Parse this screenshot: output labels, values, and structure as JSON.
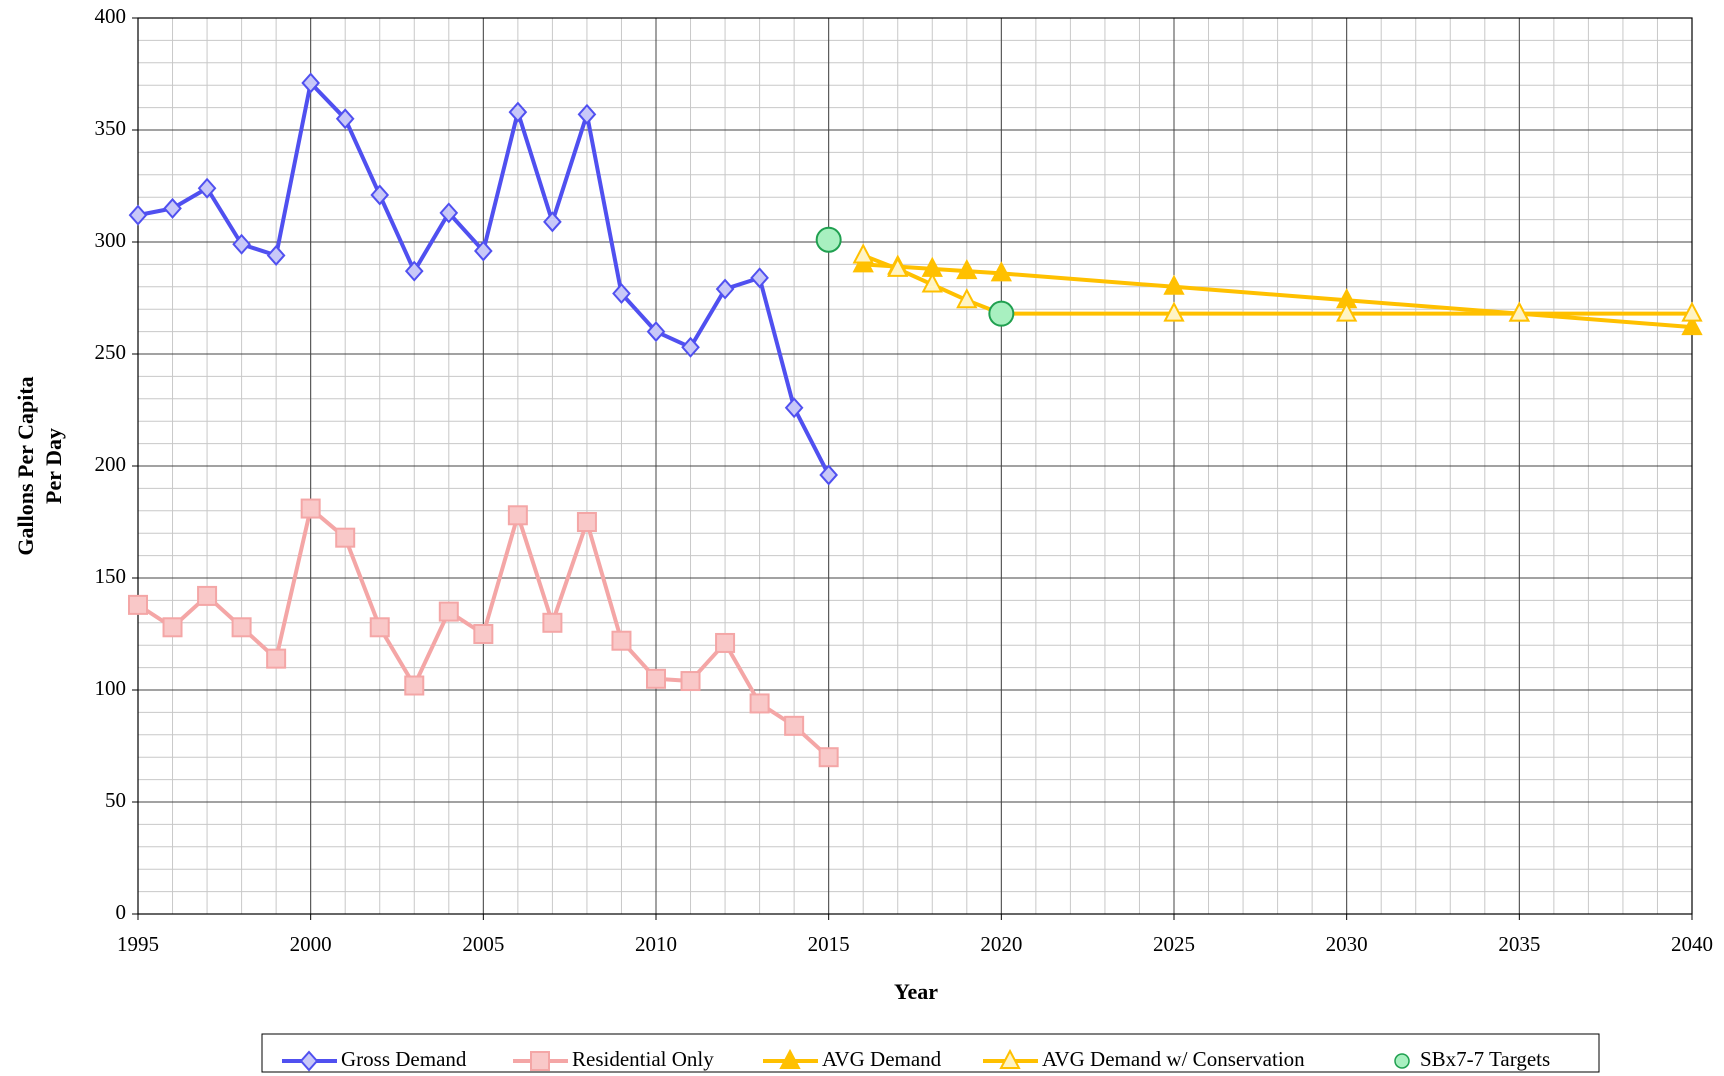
{
  "chart_data": {
    "type": "line",
    "xlabel": "Year",
    "ylabel": [
      "Gallons Per Capita",
      "Per Day"
    ],
    "xlim": [
      1995,
      2040
    ],
    "ylim": [
      0,
      400
    ],
    "xticks": [
      1995,
      2000,
      2005,
      2010,
      2015,
      2020,
      2025,
      2030,
      2035,
      2040
    ],
    "yticks": [
      0,
      50,
      100,
      150,
      200,
      250,
      300,
      350,
      400
    ],
    "xminorticks": [
      1995,
      1996,
      1997,
      1998,
      1999,
      2000,
      2001,
      2002,
      2003,
      2004,
      2005,
      2006,
      2007,
      2008,
      2009,
      2010,
      2011,
      2012,
      2013,
      2014,
      2015,
      2016,
      2017,
      2018,
      2019,
      2020,
      2021,
      2022,
      2023,
      2024,
      2025,
      2026,
      2027,
      2028,
      2029,
      2030,
      2031,
      2032,
      2033,
      2034,
      2035,
      2036,
      2037,
      2038,
      2039,
      2040
    ],
    "yminorticks": [
      0,
      10,
      20,
      30,
      40,
      50,
      60,
      70,
      80,
      90,
      100,
      110,
      120,
      130,
      140,
      150,
      160,
      170,
      180,
      190,
      200,
      210,
      220,
      230,
      240,
      250,
      260,
      270,
      280,
      290,
      300,
      310,
      320,
      330,
      340,
      350,
      360,
      370,
      380,
      390,
      400
    ],
    "grid": true,
    "legend": "bottom",
    "series": [
      {
        "name": "Gross Demand",
        "color": "#5050f0",
        "marker": "diamond",
        "marker_fill": "#c8c8f8",
        "line": true,
        "x": [
          1995,
          1996,
          1997,
          1998,
          1999,
          2000,
          2001,
          2002,
          2003,
          2004,
          2005,
          2006,
          2007,
          2008,
          2009,
          2010,
          2011,
          2012,
          2013,
          2014,
          2015
        ],
        "values": [
          312,
          315,
          324,
          299,
          294,
          371,
          355,
          321,
          287,
          313,
          296,
          358,
          309,
          357,
          277,
          260,
          253,
          279,
          284,
          226,
          196
        ]
      },
      {
        "name": "Residential Only",
        "color": "#f4a6a6",
        "marker": "square",
        "marker_fill": "#f9c8c8",
        "line": true,
        "x": [
          1995,
          1996,
          1997,
          1998,
          1999,
          2000,
          2001,
          2002,
          2003,
          2004,
          2005,
          2006,
          2007,
          2008,
          2009,
          2010,
          2011,
          2012,
          2013,
          2014,
          2015
        ],
        "values": [
          138,
          128,
          142,
          128,
          114,
          181,
          168,
          128,
          102,
          135,
          125,
          178,
          130,
          175,
          122,
          105,
          104,
          121,
          94,
          84,
          70
        ]
      },
      {
        "name": "AVG Demand",
        "color": "#ffc000",
        "marker": "triangle",
        "marker_fill": "#ffc000",
        "line": true,
        "x": [
          2016,
          2017,
          2018,
          2019,
          2020,
          2025,
          2030,
          2035,
          2040
        ],
        "values": [
          290,
          289,
          288,
          287,
          286,
          280,
          274,
          268,
          262
        ]
      },
      {
        "name": "AVG Demand w/ Conservation",
        "color": "#ffc000",
        "marker": "triangle",
        "marker_fill": "#fff4c4",
        "line": true,
        "x": [
          2016,
          2017,
          2018,
          2019,
          2020,
          2025,
          2030,
          2035,
          2040
        ],
        "values": [
          294,
          288,
          281,
          274,
          268,
          268,
          268,
          268,
          268
        ]
      },
      {
        "name": "SBx7-7 Targets",
        "color": "#20a050",
        "marker": "circle",
        "marker_fill": "#a8f0c0",
        "line": false,
        "x": [
          2015,
          2020
        ],
        "values": [
          301,
          268
        ]
      }
    ]
  }
}
